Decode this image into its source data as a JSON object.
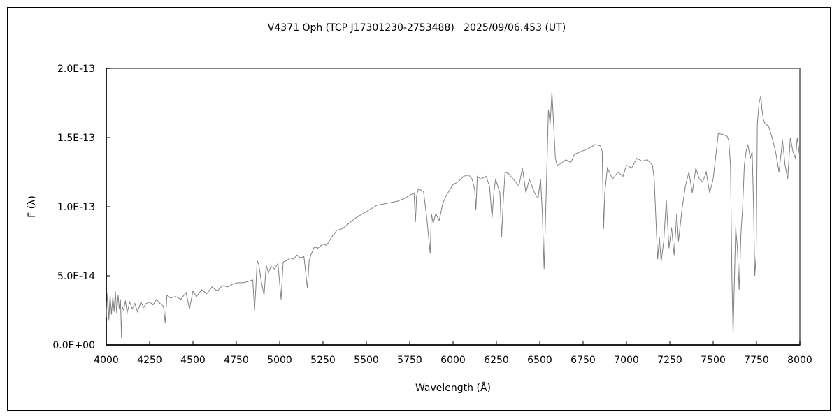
{
  "chart_data": {
    "type": "line",
    "title": "V4371 Oph (TCP J17301230-2753488)   2025/09/06.453 (UT)",
    "xlabel": "Wavelength (Å)",
    "ylabel": "F (λ)",
    "xlim": [
      4000,
      8000
    ],
    "ylim": [
      0,
      2e-13
    ],
    "grid": false,
    "x_ticks": [
      4000,
      4250,
      4500,
      4750,
      5000,
      5250,
      5500,
      5750,
      6000,
      6250,
      6500,
      6750,
      7000,
      7250,
      7500,
      7750,
      8000
    ],
    "x_tick_labels": [
      "4000",
      "4250",
      "4500",
      "4750",
      "5000",
      "5250",
      "5500",
      "5750",
      "6000",
      "6250",
      "6500",
      "6750",
      "7000",
      "7250",
      "7500",
      "7750",
      "8000"
    ],
    "y_ticks": [
      0,
      5e-14,
      1e-13,
      1.5e-13,
      2e-13
    ],
    "y_tick_labels": [
      "0.0E+00",
      "5.0E-14",
      "1.0E-13",
      "1.5E-13",
      "2.0E-13"
    ],
    "line_color": "#808080",
    "y_unit_scale": 1e-14,
    "series": [
      {
        "name": "F(λ)",
        "x": [
          4000,
          4008,
          4015,
          4022,
          4030,
          4038,
          4045,
          4052,
          4060,
          4068,
          4075,
          4082,
          4088,
          4092,
          4100,
          4110,
          4120,
          4135,
          4150,
          4165,
          4180,
          4200,
          4215,
          4230,
          4250,
          4270,
          4290,
          4310,
          4330,
          4340,
          4350,
          4370,
          4400,
          4430,
          4460,
          4480,
          4500,
          4520,
          4550,
          4580,
          4610,
          4640,
          4670,
          4700,
          4730,
          4760,
          4790,
          4820,
          4845,
          4855,
          4862,
          4870,
          4880,
          4895,
          4910,
          4922,
          4935,
          4950,
          4970,
          4990,
          5008,
          5020,
          5040,
          5060,
          5080,
          5100,
          5120,
          5140,
          5160,
          5170,
          5180,
          5200,
          5220,
          5250,
          5270,
          5300,
          5330,
          5360,
          5400,
          5440,
          5480,
          5520,
          5560,
          5600,
          5640,
          5680,
          5720,
          5760,
          5775,
          5783,
          5790,
          5800,
          5830,
          5850,
          5868,
          5875,
          5885,
          5900,
          5920,
          5940,
          5960,
          5980,
          6000,
          6030,
          6060,
          6090,
          6110,
          6125,
          6132,
          6140,
          6160,
          6190,
          6210,
          6225,
          6235,
          6245,
          6270,
          6280,
          6290,
          6300,
          6320,
          6360,
          6380,
          6400,
          6420,
          6440,
          6470,
          6490,
          6505,
          6515,
          6525,
          6535,
          6550,
          6560,
          6570,
          6578,
          6590,
          6600,
          6620,
          6650,
          6680,
          6700,
          6740,
          6780,
          6820,
          6850,
          6860,
          6868,
          6875,
          6890,
          6920,
          6950,
          6980,
          7000,
          7030,
          7060,
          7090,
          7120,
          7150,
          7160,
          7170,
          7180,
          7190,
          7200,
          7215,
          7230,
          7245,
          7260,
          7275,
          7290,
          7300,
          7320,
          7340,
          7360,
          7380,
          7400,
          7420,
          7440,
          7460,
          7480,
          7500,
          7530,
          7560,
          7580,
          7590,
          7600,
          7608,
          7615,
          7622,
          7630,
          7640,
          7650,
          7660,
          7670,
          7680,
          7690,
          7700,
          7715,
          7725,
          7733,
          7740,
          7748,
          7755,
          7765,
          7775,
          7782,
          7790,
          7800,
          7820,
          7840,
          7860,
          7880,
          7900,
          7915,
          7930,
          7945,
          7960,
          7975,
          7985,
          7995,
          8000
        ],
        "y": [
          2.0,
          3.8,
          1.8,
          3.6,
          2.2,
          3.5,
          2.4,
          3.9,
          2.3,
          3.6,
          2.6,
          3.3,
          0.5,
          2.8,
          2.5,
          3.2,
          2.3,
          3.1,
          2.6,
          3.0,
          2.4,
          3.1,
          2.7,
          3.0,
          3.1,
          2.9,
          3.3,
          3.0,
          2.8,
          1.6,
          3.6,
          3.4,
          3.5,
          3.3,
          3.8,
          2.6,
          3.9,
          3.5,
          4.0,
          3.7,
          4.2,
          3.9,
          4.3,
          4.2,
          4.4,
          4.5,
          4.5,
          4.6,
          4.7,
          2.5,
          4.0,
          6.1,
          5.8,
          4.5,
          3.6,
          5.8,
          5.2,
          5.7,
          5.5,
          5.9,
          3.3,
          6.0,
          6.1,
          6.3,
          6.2,
          6.5,
          6.3,
          6.4,
          4.1,
          6.1,
          6.5,
          7.1,
          7.0,
          7.3,
          7.2,
          7.8,
          8.3,
          8.4,
          8.8,
          9.2,
          9.5,
          9.8,
          10.1,
          10.2,
          10.3,
          10.4,
          10.6,
          10.9,
          11.0,
          8.9,
          10.8,
          11.3,
          11.1,
          9.0,
          6.6,
          9.5,
          8.8,
          9.5,
          9.0,
          10.2,
          10.8,
          11.2,
          11.6,
          11.8,
          12.2,
          12.3,
          12.0,
          11.2,
          9.8,
          12.2,
          12.0,
          12.2,
          11.5,
          9.2,
          11.0,
          12.0,
          11.0,
          7.8,
          10.5,
          12.5,
          12.4,
          11.8,
          11.5,
          12.8,
          11.0,
          12.0,
          11.0,
          10.6,
          12.0,
          9.5,
          5.5,
          10.0,
          17.0,
          16.0,
          18.3,
          16.5,
          13.5,
          13.0,
          13.1,
          13.4,
          13.2,
          13.8,
          14.0,
          14.2,
          14.5,
          14.4,
          14.0,
          8.4,
          11.0,
          12.8,
          12.0,
          12.5,
          12.2,
          13.0,
          12.8,
          13.5,
          13.3,
          13.4,
          13.0,
          12.0,
          9.0,
          6.2,
          7.8,
          6.0,
          7.5,
          10.5,
          7.0,
          8.5,
          6.5,
          9.5,
          7.5,
          9.8,
          11.5,
          12.5,
          11.0,
          12.8,
          12.0,
          11.8,
          12.5,
          11.0,
          12.0,
          15.3,
          15.2,
          15.1,
          14.8,
          13.0,
          5.0,
          0.8,
          4.5,
          8.5,
          7.0,
          4.0,
          8.0,
          10.0,
          13.0,
          14.0,
          14.5,
          13.5,
          14.0,
          10.0,
          5.0,
          6.5,
          16.0,
          17.5,
          18.0,
          17.0,
          16.3,
          16.0,
          15.8,
          15.0,
          14.0,
          12.5,
          14.8,
          13.0,
          12.0,
          15.0,
          14.0,
          13.5,
          15.0,
          14.0,
          13.6
        ]
      }
    ]
  }
}
